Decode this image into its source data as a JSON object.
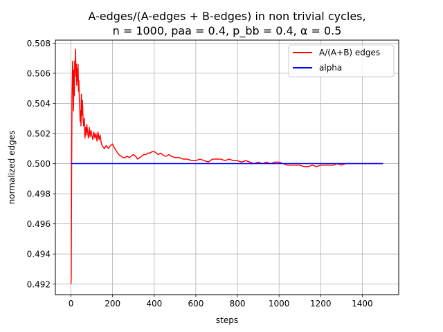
{
  "chart_data": {
    "type": "line",
    "title_lines": [
      "A-edges/(A-edges + B-edges) in non trivial cycles,",
      "n = 1000, paa = 0.4, p_bb = 0.4, α = 0.5"
    ],
    "xlabel": "steps",
    "ylabel": "normalized edges",
    "xlim": [
      -75,
      1575
    ],
    "ylim": [
      0.4913,
      0.5082
    ],
    "xticks": [
      0,
      200,
      400,
      600,
      800,
      1000,
      1200,
      1400
    ],
    "yticks": [
      0.492,
      0.494,
      0.496,
      0.498,
      0.5,
      0.502,
      0.504,
      0.506,
      0.508
    ],
    "ytick_labels": [
      "0.492",
      "0.494",
      "0.496",
      "0.498",
      "0.500",
      "0.502",
      "0.504",
      "0.506",
      "0.508"
    ],
    "grid": true,
    "legend_position": "top-right",
    "series": [
      {
        "name": "A/(A+B) edges",
        "color": "#ff0000",
        "x": [
          0,
          1,
          3,
          5,
          8,
          10,
          12,
          14,
          16,
          18,
          20,
          22,
          24,
          26,
          28,
          30,
          32,
          34,
          36,
          38,
          40,
          42,
          44,
          46,
          48,
          50,
          52,
          55,
          58,
          61,
          64,
          67,
          70,
          73,
          76,
          80,
          84,
          88,
          92,
          96,
          100,
          105,
          110,
          115,
          120,
          125,
          130,
          135,
          140,
          145,
          150,
          160,
          170,
          180,
          190,
          200,
          210,
          220,
          230,
          240,
          250,
          260,
          270,
          280,
          290,
          300,
          310,
          320,
          330,
          340,
          350,
          360,
          370,
          380,
          390,
          400,
          410,
          420,
          430,
          440,
          450,
          460,
          470,
          480,
          500,
          520,
          540,
          560,
          580,
          600,
          620,
          640,
          660,
          680,
          700,
          720,
          740,
          760,
          780,
          800,
          820,
          840,
          860,
          880,
          900,
          920,
          940,
          960,
          980,
          1000,
          1020,
          1040,
          1060,
          1080,
          1100,
          1120,
          1140,
          1160,
          1180,
          1200,
          1220,
          1240,
          1260,
          1280,
          1300,
          1320,
          1340,
          1360,
          1380,
          1400,
          1420,
          1440,
          1460,
          1480,
          1500
        ],
        "y": [
          0.492,
          0.4925,
          0.4995,
          0.5045,
          0.5068,
          0.5055,
          0.5035,
          0.5062,
          0.5045,
          0.5068,
          0.5062,
          0.5076,
          0.5058,
          0.5066,
          0.5052,
          0.5063,
          0.5055,
          0.5066,
          0.5048,
          0.5055,
          0.5043,
          0.5038,
          0.5028,
          0.5035,
          0.5025,
          0.5046,
          0.5032,
          0.5042,
          0.503,
          0.5025,
          0.503,
          0.5017,
          0.5024,
          0.5019,
          0.5026,
          0.5021,
          0.5017,
          0.5024,
          0.5018,
          0.5022,
          0.5019,
          0.5016,
          0.5021,
          0.5017,
          0.502,
          0.5015,
          0.5021,
          0.5016,
          0.5019,
          0.5014,
          0.5012,
          0.501,
          0.5012,
          0.501,
          0.5012,
          0.5013,
          0.501,
          0.5008,
          0.5006,
          0.5005,
          0.5004,
          0.5004,
          0.5005,
          0.5004,
          0.5005,
          0.5006,
          0.5005,
          0.5003,
          0.5004,
          0.5005,
          0.5006,
          0.5006,
          0.5007,
          0.5007,
          0.5008,
          0.5008,
          0.5007,
          0.5006,
          0.5007,
          0.5006,
          0.5005,
          0.5005,
          0.5006,
          0.5005,
          0.5004,
          0.5004,
          0.5003,
          0.5003,
          0.5002,
          0.5002,
          0.5003,
          0.5002,
          0.5001,
          0.5003,
          0.5003,
          0.5003,
          0.5002,
          0.5003,
          0.5002,
          0.5002,
          0.5001,
          0.5002,
          0.5001,
          0.5,
          0.5001,
          0.5,
          0.5001,
          0.5,
          0.5001,
          0.5001,
          0.5,
          0.4999,
          0.4999,
          0.4999,
          0.4999,
          0.4998,
          0.4998,
          0.4999,
          0.4998,
          0.4999,
          0.4999,
          0.4999,
          0.4999,
          0.5,
          0.4999,
          0.5,
          0.5,
          0.5,
          0.5,
          0.5,
          0.5,
          0.5,
          0.5,
          0.5,
          0.5
        ]
      },
      {
        "name": "alpha",
        "color": "#0000ff",
        "x": [
          0,
          1500
        ],
        "y": [
          0.5,
          0.5
        ]
      }
    ]
  }
}
